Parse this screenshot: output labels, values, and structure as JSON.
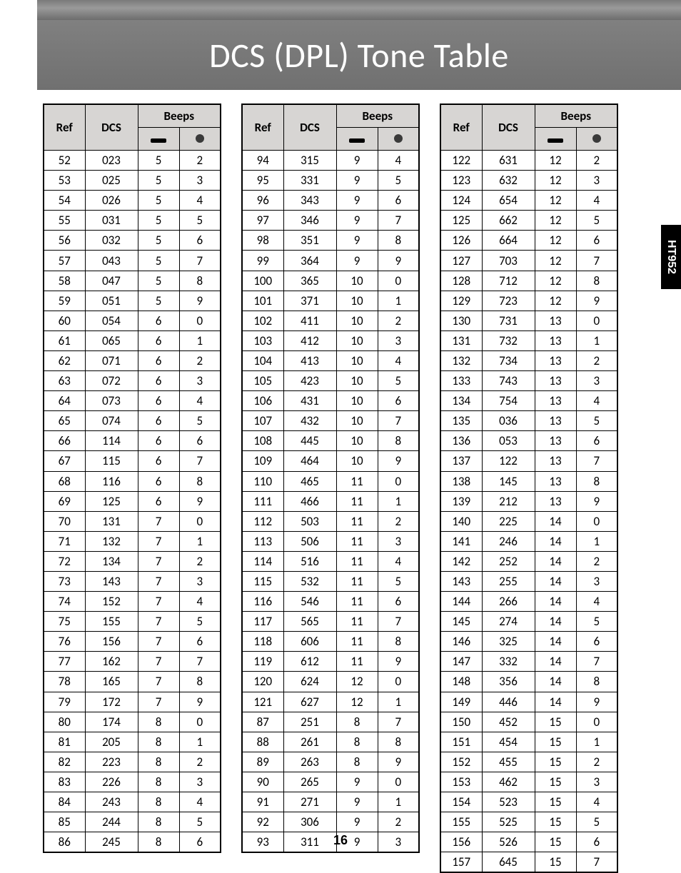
{
  "page_title": "DCS (DPL) Tone Table",
  "side_tab": "HT952",
  "page_number": "16",
  "headers": {
    "ref": "Ref",
    "dcs": "DCS",
    "beeps": "Beeps"
  },
  "table1": [
    {
      "ref": "52",
      "dcs": "023",
      "b1": "5",
      "b2": "2"
    },
    {
      "ref": "53",
      "dcs": "025",
      "b1": "5",
      "b2": "3"
    },
    {
      "ref": "54",
      "dcs": "026",
      "b1": "5",
      "b2": "4"
    },
    {
      "ref": "55",
      "dcs": "031",
      "b1": "5",
      "b2": "5"
    },
    {
      "ref": "56",
      "dcs": "032",
      "b1": "5",
      "b2": "6"
    },
    {
      "ref": "57",
      "dcs": "043",
      "b1": "5",
      "b2": "7"
    },
    {
      "ref": "58",
      "dcs": "047",
      "b1": "5",
      "b2": "8"
    },
    {
      "ref": "59",
      "dcs": "051",
      "b1": "5",
      "b2": "9"
    },
    {
      "ref": "60",
      "dcs": "054",
      "b1": "6",
      "b2": "0"
    },
    {
      "ref": "61",
      "dcs": "065",
      "b1": "6",
      "b2": "1"
    },
    {
      "ref": "62",
      "dcs": "071",
      "b1": "6",
      "b2": "2"
    },
    {
      "ref": "63",
      "dcs": "072",
      "b1": "6",
      "b2": "3"
    },
    {
      "ref": "64",
      "dcs": "073",
      "b1": "6",
      "b2": "4"
    },
    {
      "ref": "65",
      "dcs": "074",
      "b1": "6",
      "b2": "5"
    },
    {
      "ref": "66",
      "dcs": "114",
      "b1": "6",
      "b2": "6"
    },
    {
      "ref": "67",
      "dcs": "115",
      "b1": "6",
      "b2": "7"
    },
    {
      "ref": "68",
      "dcs": "116",
      "b1": "6",
      "b2": "8"
    },
    {
      "ref": "69",
      "dcs": "125",
      "b1": "6",
      "b2": "9"
    },
    {
      "ref": "70",
      "dcs": "131",
      "b1": "7",
      "b2": "0"
    },
    {
      "ref": "71",
      "dcs": "132",
      "b1": "7",
      "b2": "1"
    },
    {
      "ref": "72",
      "dcs": "134",
      "b1": "7",
      "b2": "2"
    },
    {
      "ref": "73",
      "dcs": "143",
      "b1": "7",
      "b2": "3"
    },
    {
      "ref": "74",
      "dcs": "152",
      "b1": "7",
      "b2": "4"
    },
    {
      "ref": "75",
      "dcs": "155",
      "b1": "7",
      "b2": "5"
    },
    {
      "ref": "76",
      "dcs": "156",
      "b1": "7",
      "b2": "6"
    },
    {
      "ref": "77",
      "dcs": "162",
      "b1": "7",
      "b2": "7"
    },
    {
      "ref": "78",
      "dcs": "165",
      "b1": "7",
      "b2": "8"
    },
    {
      "ref": "79",
      "dcs": "172",
      "b1": "7",
      "b2": "9"
    },
    {
      "ref": "80",
      "dcs": "174",
      "b1": "8",
      "b2": "0"
    },
    {
      "ref": "81",
      "dcs": "205",
      "b1": "8",
      "b2": "1"
    },
    {
      "ref": "82",
      "dcs": "223",
      "b1": "8",
      "b2": "2"
    },
    {
      "ref": "83",
      "dcs": "226",
      "b1": "8",
      "b2": "3"
    },
    {
      "ref": "84",
      "dcs": "243",
      "b1": "8",
      "b2": "4"
    },
    {
      "ref": "85",
      "dcs": "244",
      "b1": "8",
      "b2": "5"
    },
    {
      "ref": "86",
      "dcs": "245",
      "b1": "8",
      "b2": "6"
    }
  ],
  "table2": [
    {
      "ref": "94",
      "dcs": "315",
      "b1": "9",
      "b2": "4"
    },
    {
      "ref": "95",
      "dcs": "331",
      "b1": "9",
      "b2": "5"
    },
    {
      "ref": "96",
      "dcs": "343",
      "b1": "9",
      "b2": "6"
    },
    {
      "ref": "97",
      "dcs": "346",
      "b1": "9",
      "b2": "7"
    },
    {
      "ref": "98",
      "dcs": "351",
      "b1": "9",
      "b2": "8"
    },
    {
      "ref": "99",
      "dcs": "364",
      "b1": "9",
      "b2": "9"
    },
    {
      "ref": "100",
      "dcs": "365",
      "b1": "10",
      "b2": "0"
    },
    {
      "ref": "101",
      "dcs": "371",
      "b1": "10",
      "b2": "1"
    },
    {
      "ref": "102",
      "dcs": "411",
      "b1": "10",
      "b2": "2"
    },
    {
      "ref": "103",
      "dcs": "412",
      "b1": "10",
      "b2": "3"
    },
    {
      "ref": "104",
      "dcs": "413",
      "b1": "10",
      "b2": "4"
    },
    {
      "ref": "105",
      "dcs": "423",
      "b1": "10",
      "b2": "5"
    },
    {
      "ref": "106",
      "dcs": "431",
      "b1": "10",
      "b2": "6"
    },
    {
      "ref": "107",
      "dcs": "432",
      "b1": "10",
      "b2": "7"
    },
    {
      "ref": "108",
      "dcs": "445",
      "b1": "10",
      "b2": "8"
    },
    {
      "ref": "109",
      "dcs": "464",
      "b1": "10",
      "b2": "9"
    },
    {
      "ref": "110",
      "dcs": "465",
      "b1": "11",
      "b2": "0"
    },
    {
      "ref": "111",
      "dcs": "466",
      "b1": "11",
      "b2": "1"
    },
    {
      "ref": "112",
      "dcs": "503",
      "b1": "11",
      "b2": "2"
    },
    {
      "ref": "113",
      "dcs": "506",
      "b1": "11",
      "b2": "3"
    },
    {
      "ref": "114",
      "dcs": "516",
      "b1": "11",
      "b2": "4"
    },
    {
      "ref": "115",
      "dcs": "532",
      "b1": "11",
      "b2": "5"
    },
    {
      "ref": "116",
      "dcs": "546",
      "b1": "11",
      "b2": "6"
    },
    {
      "ref": "117",
      "dcs": "565",
      "b1": "11",
      "b2": "7"
    },
    {
      "ref": "118",
      "dcs": "606",
      "b1": "11",
      "b2": "8"
    },
    {
      "ref": "119",
      "dcs": "612",
      "b1": "11",
      "b2": "9"
    },
    {
      "ref": "120",
      "dcs": "624",
      "b1": "12",
      "b2": "0"
    },
    {
      "ref": "121",
      "dcs": "627",
      "b1": "12",
      "b2": "1"
    },
    {
      "ref": "87",
      "dcs": "251",
      "b1": "8",
      "b2": "7"
    },
    {
      "ref": "88",
      "dcs": "261",
      "b1": "8",
      "b2": "8"
    },
    {
      "ref": "89",
      "dcs": "263",
      "b1": "8",
      "b2": "9"
    },
    {
      "ref": "90",
      "dcs": "265",
      "b1": "9",
      "b2": "0"
    },
    {
      "ref": "91",
      "dcs": "271",
      "b1": "9",
      "b2": "1"
    },
    {
      "ref": "92",
      "dcs": "306",
      "b1": "9",
      "b2": "2"
    },
    {
      "ref": "93",
      "dcs": "311",
      "b1": "9",
      "b2": "3"
    }
  ],
  "table3": [
    {
      "ref": "122",
      "dcs": "631",
      "b1": "12",
      "b2": "2"
    },
    {
      "ref": "123",
      "dcs": "632",
      "b1": "12",
      "b2": "3"
    },
    {
      "ref": "124",
      "dcs": "654",
      "b1": "12",
      "b2": "4"
    },
    {
      "ref": "125",
      "dcs": "662",
      "b1": "12",
      "b2": "5"
    },
    {
      "ref": "126",
      "dcs": "664",
      "b1": "12",
      "b2": "6"
    },
    {
      "ref": "127",
      "dcs": "703",
      "b1": "12",
      "b2": "7"
    },
    {
      "ref": "128",
      "dcs": "712",
      "b1": "12",
      "b2": "8"
    },
    {
      "ref": "129",
      "dcs": "723",
      "b1": "12",
      "b2": "9"
    },
    {
      "ref": "130",
      "dcs": "731",
      "b1": "13",
      "b2": "0"
    },
    {
      "ref": "131",
      "dcs": "732",
      "b1": "13",
      "b2": "1"
    },
    {
      "ref": "132",
      "dcs": "734",
      "b1": "13",
      "b2": "2"
    },
    {
      "ref": "133",
      "dcs": "743",
      "b1": "13",
      "b2": "3"
    },
    {
      "ref": "134",
      "dcs": "754",
      "b1": "13",
      "b2": "4"
    },
    {
      "ref": "135",
      "dcs": "036",
      "b1": "13",
      "b2": "5"
    },
    {
      "ref": "136",
      "dcs": "053",
      "b1": "13",
      "b2": "6"
    },
    {
      "ref": "137",
      "dcs": "122",
      "b1": "13",
      "b2": "7"
    },
    {
      "ref": "138",
      "dcs": "145",
      "b1": "13",
      "b2": "8"
    },
    {
      "ref": "139",
      "dcs": "212",
      "b1": "13",
      "b2": "9"
    },
    {
      "ref": "140",
      "dcs": "225",
      "b1": "14",
      "b2": "0"
    },
    {
      "ref": "141",
      "dcs": "246",
      "b1": "14",
      "b2": "1"
    },
    {
      "ref": "142",
      "dcs": "252",
      "b1": "14",
      "b2": "2"
    },
    {
      "ref": "143",
      "dcs": "255",
      "b1": "14",
      "b2": "3"
    },
    {
      "ref": "144",
      "dcs": "266",
      "b1": "14",
      "b2": "4"
    },
    {
      "ref": "145",
      "dcs": "274",
      "b1": "14",
      "b2": "5"
    },
    {
      "ref": "146",
      "dcs": "325",
      "b1": "14",
      "b2": "6"
    },
    {
      "ref": "147",
      "dcs": "332",
      "b1": "14",
      "b2": "7"
    },
    {
      "ref": "148",
      "dcs": "356",
      "b1": "14",
      "b2": "8"
    },
    {
      "ref": "149",
      "dcs": "446",
      "b1": "14",
      "b2": "9"
    },
    {
      "ref": "150",
      "dcs": "452",
      "b1": "15",
      "b2": "0"
    },
    {
      "ref": "151",
      "dcs": "454",
      "b1": "15",
      "b2": "1"
    },
    {
      "ref": "152",
      "dcs": "455",
      "b1": "15",
      "b2": "2"
    },
    {
      "ref": "153",
      "dcs": "462",
      "b1": "15",
      "b2": "3"
    },
    {
      "ref": "154",
      "dcs": "523",
      "b1": "15",
      "b2": "4"
    },
    {
      "ref": "155",
      "dcs": "525",
      "b1": "15",
      "b2": "5"
    },
    {
      "ref": "156",
      "dcs": "526",
      "b1": "15",
      "b2": "6"
    },
    {
      "ref": "157",
      "dcs": "645",
      "b1": "15",
      "b2": "7"
    }
  ]
}
